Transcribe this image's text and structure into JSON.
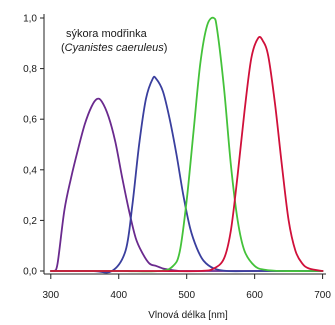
{
  "chart_data": {
    "type": "line",
    "xlabel": "Vlnová délka [nm]",
    "ylabel": "",
    "xlim": [
      290,
      705
    ],
    "ylim": [
      0,
      1.0
    ],
    "x_ticks": [
      300,
      400,
      500,
      600,
      700
    ],
    "y_ticks": [
      {
        "value": 0.0,
        "label": "0,0"
      },
      {
        "value": 0.2,
        "label": "0,2"
      },
      {
        "value": 0.4,
        "label": "0,4"
      },
      {
        "value": 0.6,
        "label": "0,6"
      },
      {
        "value": 0.8,
        "label": "0,8"
      },
      {
        "value": 1.0,
        "label": "1,0"
      }
    ],
    "annotation": {
      "line1": "sýkora modřinka",
      "line2_prefix": "(",
      "line2_italic": "Cyanistes caeruleus",
      "line2_suffix": ")"
    },
    "grid": false,
    "series": [
      {
        "color": "#6a2a8e",
        "x": [
          305,
          310,
          320,
          330,
          340,
          350,
          360,
          368,
          375,
          385,
          395,
          405,
          415,
          425,
          435,
          445,
          455,
          465,
          475,
          490,
          510,
          540,
          580,
          620,
          660,
          700
        ],
        "y": [
          0.0,
          0.03,
          0.24,
          0.37,
          0.48,
          0.58,
          0.65,
          0.68,
          0.67,
          0.61,
          0.51,
          0.37,
          0.24,
          0.13,
          0.07,
          0.03,
          0.02,
          0.01,
          0.005,
          0.0,
          0.0,
          0.0,
          0.0,
          0.0,
          0.0,
          0.0
        ]
      },
      {
        "color": "#3a3f9e",
        "x": [
          300,
          360,
          390,
          410,
          420,
          430,
          440,
          450,
          455,
          465,
          475,
          485,
          495,
          505,
          515,
          525,
          540,
          560,
          600,
          650,
          700
        ],
        "y": [
          0.0,
          0.0,
          0.0,
          0.08,
          0.26,
          0.5,
          0.68,
          0.76,
          0.76,
          0.71,
          0.6,
          0.46,
          0.3,
          0.17,
          0.09,
          0.04,
          0.01,
          0.0,
          0.0,
          0.0,
          0.0
        ]
      },
      {
        "color": "#44c23a",
        "x": [
          300,
          400,
          460,
          480,
          490,
          500,
          510,
          520,
          530,
          540,
          545,
          555,
          565,
          575,
          585,
          600,
          615,
          640,
          700
        ],
        "y": [
          0.0,
          0.0,
          0.0,
          0.02,
          0.08,
          0.28,
          0.55,
          0.82,
          0.97,
          1.0,
          0.95,
          0.72,
          0.42,
          0.2,
          0.08,
          0.02,
          0.005,
          0.0,
          0.0
        ]
      },
      {
        "color": "#d0103a",
        "x": [
          300,
          450,
          520,
          540,
          555,
          565,
          575,
          585,
          595,
          605,
          612,
          620,
          630,
          640,
          650,
          660,
          670,
          680,
          700
        ],
        "y": [
          0.0,
          0.0,
          0.0,
          0.01,
          0.05,
          0.16,
          0.38,
          0.63,
          0.84,
          0.92,
          0.91,
          0.85,
          0.66,
          0.42,
          0.2,
          0.08,
          0.03,
          0.01,
          0.0
        ]
      }
    ]
  }
}
